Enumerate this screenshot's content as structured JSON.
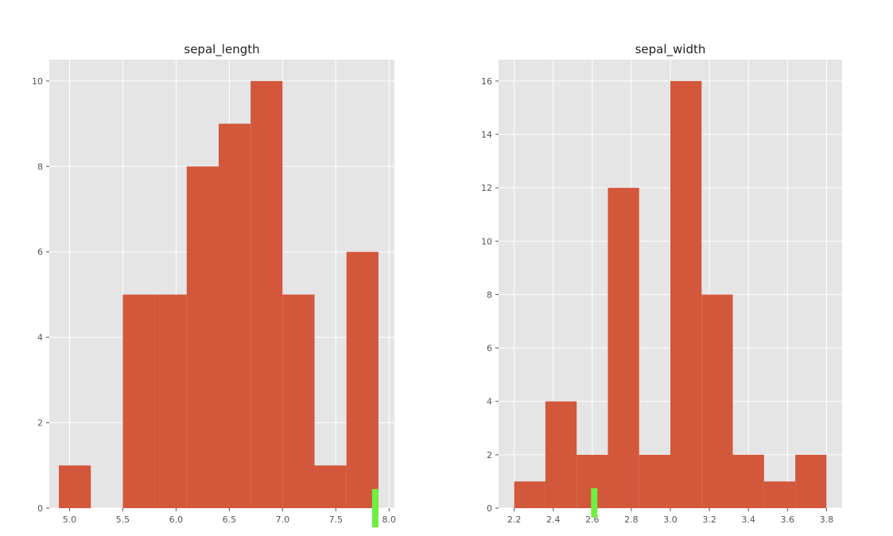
{
  "chart_data": [
    {
      "type": "bar",
      "title": "sepal_length",
      "xlabel": "",
      "ylabel": "",
      "bin_edges": [
        4.9,
        5.2,
        5.5,
        5.8,
        6.1,
        6.4,
        6.7,
        7.0,
        7.3,
        7.6,
        7.9
      ],
      "values": [
        1,
        0,
        5,
        5,
        8,
        9,
        10,
        5,
        1,
        6
      ],
      "xlim": [
        4.81,
        8.05
      ],
      "ylim": [
        0,
        10.5
      ],
      "xticks": [
        5.0,
        5.5,
        6.0,
        6.5,
        7.0,
        7.5,
        8.0
      ],
      "xtick_labels": [
        "5.0",
        "5.5",
        "6.0",
        "6.5",
        "7.0",
        "7.5",
        "8.0"
      ],
      "yticks": [
        0,
        2,
        4,
        6,
        8,
        10
      ],
      "ytick_labels": [
        "0",
        "2",
        "4",
        "6",
        "8",
        "10"
      ],
      "grid": true,
      "bar_color": "#d2573b",
      "axes_background": "#e5e5e5",
      "marker": {
        "x": 7.87,
        "ybottom": -0.45,
        "ytop": 0.45,
        "color": "#6fef3f"
      }
    },
    {
      "type": "bar",
      "title": "sepal_width",
      "xlabel": "",
      "ylabel": "",
      "bin_edges": [
        2.2,
        2.36,
        2.52,
        2.68,
        2.84,
        3.0,
        3.16,
        3.32,
        3.48,
        3.64,
        3.8
      ],
      "values": [
        1,
        4,
        2,
        12,
        2,
        16,
        8,
        2,
        1,
        2
      ],
      "xlim": [
        2.12,
        3.88
      ],
      "ylim": [
        0,
        16.8
      ],
      "xticks": [
        2.2,
        2.4,
        2.6,
        2.8,
        3.0,
        3.2,
        3.4,
        3.6,
        3.8
      ],
      "xtick_labels": [
        "2.2",
        "2.4",
        "2.6",
        "2.8",
        "3.0",
        "3.2",
        "3.4",
        "3.6",
        "3.8"
      ],
      "yticks": [
        0,
        2,
        4,
        6,
        8,
        10,
        12,
        14,
        16
      ],
      "ytick_labels": [
        "0",
        "2",
        "4",
        "6",
        "8",
        "10",
        "12",
        "14",
        "16"
      ],
      "grid": true,
      "bar_color": "#d2573b",
      "axes_background": "#e5e5e5",
      "marker": {
        "x": 2.61,
        "ybottom": -0.35,
        "ytop": 0.75,
        "color": "#6fef3f"
      }
    }
  ]
}
